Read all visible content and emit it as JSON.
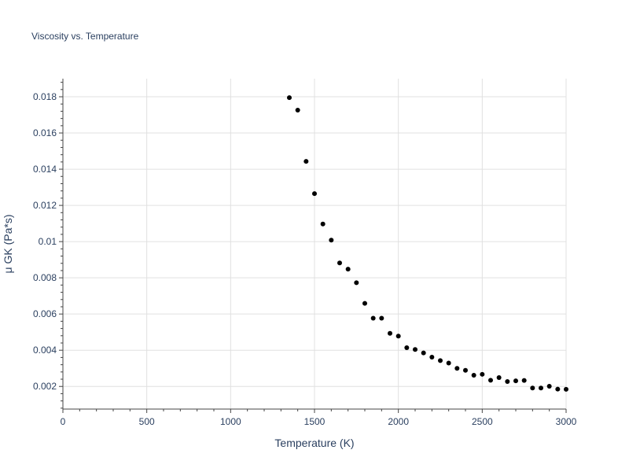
{
  "chart_data": {
    "type": "scatter",
    "title": "Viscosity vs. Temperature",
    "xlabel": "Temperature (K)",
    "ylabel": "μ GK (Pa*s)",
    "xlim": [
      0,
      3000
    ],
    "ylim": [
      0.00075,
      0.019
    ],
    "x_ticks": [
      0,
      500,
      1000,
      1500,
      2000,
      2500,
      3000
    ],
    "x_tick_labels": [
      "0",
      "500",
      "1000",
      "1500",
      "2000",
      "2500",
      "3000"
    ],
    "y_ticks": [
      0.002,
      0.004,
      0.006,
      0.008,
      0.01,
      0.012,
      0.014,
      0.016,
      0.018
    ],
    "y_tick_labels": [
      "0.002",
      "0.004",
      "0.006",
      "0.008",
      "0.01",
      "0.012",
      "0.014",
      "0.016",
      "0.018"
    ],
    "grid": true,
    "marker_color": "#000000",
    "series": [
      {
        "x": [
          1350,
          1400,
          1450,
          1500,
          1550,
          1600,
          1650,
          1700,
          1750,
          1800,
          1850,
          1900,
          1950,
          2000,
          2050,
          2100,
          2150,
          2200,
          2250,
          2300,
          2350,
          2400,
          2450,
          2500,
          2550,
          2600,
          2650,
          2700,
          2750,
          2800,
          2850,
          2900,
          2950,
          3000
        ],
        "y": [
          0.01795,
          0.01726,
          0.01443,
          0.01265,
          0.01097,
          0.01008,
          0.00882,
          0.00848,
          0.00773,
          0.00659,
          0.00577,
          0.00577,
          0.00493,
          0.00478,
          0.00414,
          0.00404,
          0.00385,
          0.00362,
          0.00343,
          0.00329,
          0.003,
          0.00289,
          0.00262,
          0.00267,
          0.00234,
          0.00249,
          0.00227,
          0.00231,
          0.00233,
          0.00191,
          0.00191,
          0.00201,
          0.00185,
          0.00184
        ]
      }
    ]
  }
}
